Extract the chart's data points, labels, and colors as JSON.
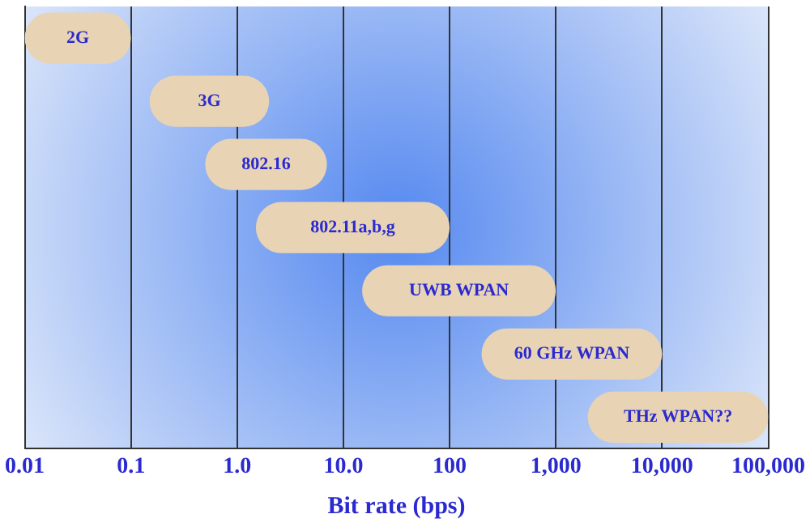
{
  "chart_data": {
    "type": "bar",
    "orientation": "horizontal",
    "xlabel": "Bit rate (bps)",
    "categories": [
      "2G",
      "3G",
      "802.16",
      "802.11a,b,g",
      "UWB WPAN",
      "60 GHz WPAN",
      "THz WPAN??"
    ],
    "base": [
      0.01,
      0.15,
      0.5,
      1.5,
      15,
      200,
      2000
    ],
    "values": [
      0.09,
      1.85,
      6.5,
      98.5,
      985,
      9800,
      98000
    ],
    "color": "#e8d4b4",
    "log": "x",
    "xlim": [
      0.01,
      100000
    ],
    "xticks": [
      0.01,
      0.1,
      {
        "value": 1,
        "label": "1.0"
      },
      {
        "value": 10,
        "label": "10.0"
      },
      100,
      {
        "value": 1000,
        "label": "1,000"
      },
      {
        "value": 10000,
        "label": "10,000"
      },
      {
        "value": 100000,
        "label": "100,000"
      }
    ],
    "grid": "x",
    "tick_labels": "x",
    "legend": false
  }
}
